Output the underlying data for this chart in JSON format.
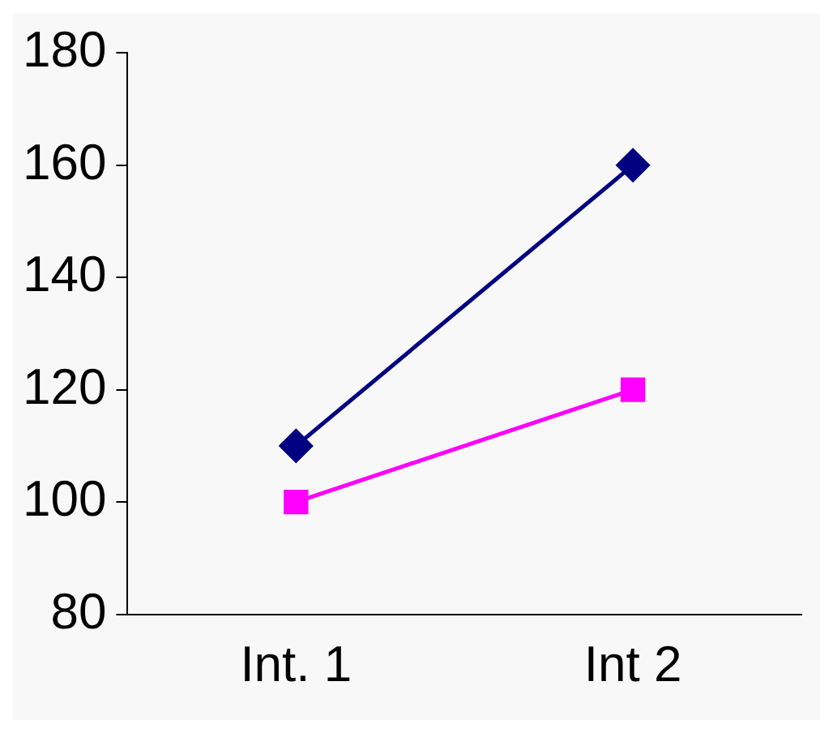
{
  "chart_data": {
    "type": "line",
    "categories": [
      "Int. 1",
      "Int 2"
    ],
    "series": [
      {
        "color": "#000080",
        "values": [
          110,
          160
        ],
        "marker": "diamond"
      },
      {
        "color": "#ff00ff",
        "values": [
          100,
          120
        ],
        "marker": "square"
      }
    ],
    "ylim": [
      80,
      180
    ],
    "yticks": [
      80,
      100,
      120,
      140,
      160,
      180
    ],
    "grid": false,
    "legend": false,
    "line_style": "solid"
  }
}
